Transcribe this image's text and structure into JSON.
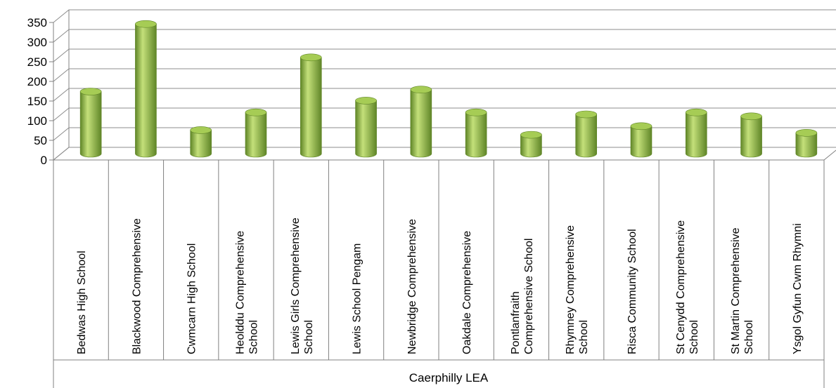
{
  "chart_data": {
    "type": "bar",
    "style": "3d-cylinder",
    "group_label": "Caerphilly LEA",
    "categories": [
      "Bedwas High School",
      "Blackwood Comprehensive",
      "Cwmcarn High School",
      "Heolddu Comprehensive School",
      "Lewis Girls Comprehensive School",
      "Lewis School Pengam",
      "Newbridge Comprehensive",
      "Oakdale Comprehensive",
      "Pontlanfraith Comprehensive School",
      "Rhymney Comprehensive School",
      "Risca Community School",
      "St Cenydd Comprehensive School",
      "St Martin Comprehensive School",
      "Ysgol Gyfun Cwm Rhymni"
    ],
    "category_lines": [
      [
        "Bedwas High School"
      ],
      [
        "Blackwood Comprehensive"
      ],
      [
        "Cwmcarn High School"
      ],
      [
        "Heolddu Comprehensive",
        "School"
      ],
      [
        "Lewis Girls Comprehensive",
        "School"
      ],
      [
        "Lewis School Pengam"
      ],
      [
        "Newbridge Comprehensive"
      ],
      [
        "Oakdale Comprehensive"
      ],
      [
        "Pontlanfraith",
        "Comprehensive School"
      ],
      [
        "Rhymney Comprehensive",
        "School"
      ],
      [
        "Risca Community School"
      ],
      [
        "St Cenydd Comprehensive",
        "School"
      ],
      [
        "St Martin Comprehensive",
        "School"
      ],
      [
        "Ysgol Gyfun Cwm Rhymni"
      ]
    ],
    "values": [
      158,
      330,
      60,
      105,
      245,
      135,
      163,
      105,
      48,
      100,
      70,
      105,
      95,
      53
    ],
    "ylim": [
      0,
      350
    ],
    "yticks": [
      0,
      50,
      100,
      150,
      200,
      250,
      300,
      350
    ],
    "title": "",
    "xlabel": "",
    "ylabel": "",
    "grid": true,
    "legend": "none",
    "colors": {
      "bar_fill": "#8db640",
      "bar_light": "#c4e07a",
      "bar_dark": "#5f8527",
      "bar_top": "#a6cc55",
      "grid": "#8c8c8c",
      "axis": "#808080"
    }
  }
}
